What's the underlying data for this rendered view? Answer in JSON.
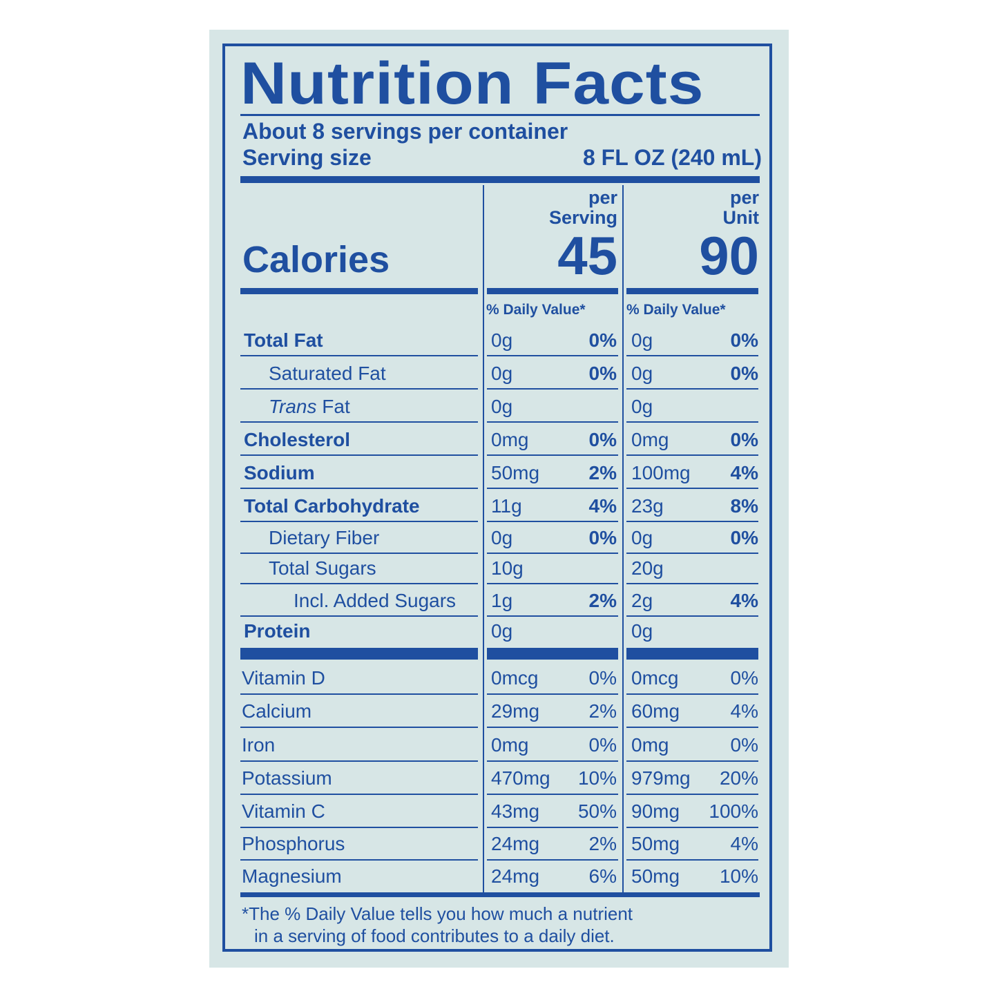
{
  "title": "Nutrition Facts",
  "servings_per_container": "About 8 servings per container",
  "serving_size_label": "Serving size",
  "serving_size_value": "8 FL OZ (240 mL)",
  "calories_label": "Calories",
  "columns": [
    {
      "header_line1": "per",
      "header_line2": "Serving",
      "calories": "45",
      "dv_label": "% Daily Value*"
    },
    {
      "header_line1": "per",
      "header_line2": "Unit",
      "calories": "90",
      "dv_label": "% Daily Value*"
    }
  ],
  "nutrients": [
    {
      "name": "Total Fat",
      "bold": true,
      "indent": 0,
      "serving": "0g",
      "serving_dv": "0%",
      "unit": "0g",
      "unit_dv": "0%"
    },
    {
      "name": "Saturated Fat",
      "bold": false,
      "indent": 1,
      "serving": "0g",
      "serving_dv": "0%",
      "unit": "0g",
      "unit_dv": "0%"
    },
    {
      "name": "Trans Fat",
      "bold": false,
      "indent": 1,
      "italic_prefix": "Trans",
      "suffix": " Fat",
      "serving": "0g",
      "serving_dv": "",
      "unit": "0g",
      "unit_dv": ""
    },
    {
      "name": "Cholesterol",
      "bold": true,
      "indent": 0,
      "serving": "0mg",
      "serving_dv": "0%",
      "unit": "0mg",
      "unit_dv": "0%"
    },
    {
      "name": "Sodium",
      "bold": true,
      "indent": 0,
      "serving": "50mg",
      "serving_dv": "2%",
      "unit": "100mg",
      "unit_dv": "4%"
    },
    {
      "name": "Total Carbohydrate",
      "bold": true,
      "indent": 0,
      "serving": "11g",
      "serving_dv": "4%",
      "unit": "23g",
      "unit_dv": "8%"
    },
    {
      "name": "Dietary Fiber",
      "bold": false,
      "indent": 1,
      "serving": "0g",
      "serving_dv": "0%",
      "unit": "0g",
      "unit_dv": "0%"
    },
    {
      "name": "Total Sugars",
      "bold": false,
      "indent": 1,
      "serving": "10g",
      "serving_dv": "",
      "unit": "20g",
      "unit_dv": ""
    },
    {
      "name": "Incl. Added Sugars",
      "bold": false,
      "indent": 2,
      "serving": "1g",
      "serving_dv": "2%",
      "unit": "2g",
      "unit_dv": "4%"
    },
    {
      "name": "Protein",
      "bold": true,
      "indent": 0,
      "serving": "0g",
      "serving_dv": "",
      "unit": "0g",
      "unit_dv": ""
    }
  ],
  "vitamins": [
    {
      "name": "Vitamin D",
      "serving": "0mcg",
      "serving_dv": "0%",
      "unit": "0mcg",
      "unit_dv": "0%"
    },
    {
      "name": "Calcium",
      "serving": "29mg",
      "serving_dv": "2%",
      "unit": "60mg",
      "unit_dv": "4%"
    },
    {
      "name": "Iron",
      "serving": "0mg",
      "serving_dv": "0%",
      "unit": "0mg",
      "unit_dv": "0%"
    },
    {
      "name": "Potassium",
      "serving": "470mg",
      "serving_dv": "10%",
      "unit": "979mg",
      "unit_dv": "20%"
    },
    {
      "name": "Vitamin C",
      "serving": "43mg",
      "serving_dv": "50%",
      "unit": "90mg",
      "unit_dv": "100%"
    },
    {
      "name": "Phosphorus",
      "serving": "24mg",
      "serving_dv": "2%",
      "unit": "50mg",
      "unit_dv": "4%"
    },
    {
      "name": "Magnesium",
      "serving": "24mg",
      "serving_dv": "6%",
      "unit": "50mg",
      "unit_dv": "10%"
    }
  ],
  "footnote_line1": "*The % Daily Value tells you how much a nutrient",
  "footnote_line2": "in a serving of food contributes to a daily diet.",
  "colors": {
    "ink": "#1f4fa0",
    "background": "#d7e6e6"
  }
}
